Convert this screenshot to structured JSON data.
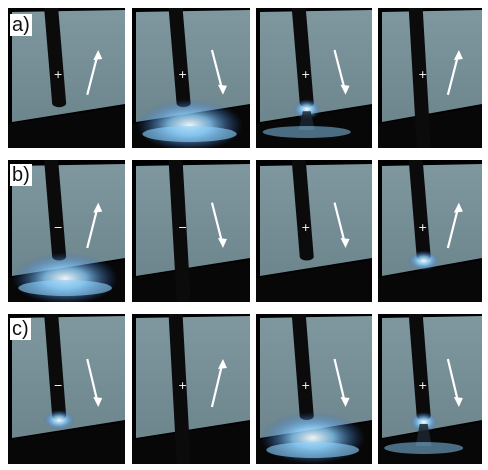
{
  "figure": {
    "rows": [
      {
        "label": "a)",
        "frames": [
          {
            "polarity": "+",
            "arrow": "up",
            "glow": "none"
          },
          {
            "polarity": "+",
            "arrow": "down",
            "glow": "wide"
          },
          {
            "polarity": "+",
            "arrow": "down",
            "glow": "droplet"
          },
          {
            "polarity": "+",
            "arrow": "up",
            "glow": "none"
          }
        ]
      },
      {
        "label": "b)",
        "frames": [
          {
            "polarity": "−",
            "arrow": "up",
            "glow": "wide-tip"
          },
          {
            "polarity": "−",
            "arrow": "down",
            "glow": "none"
          },
          {
            "polarity": "+",
            "arrow": "down",
            "glow": "none"
          },
          {
            "polarity": "+",
            "arrow": "up",
            "glow": "tip"
          }
        ]
      },
      {
        "label": "c)",
        "frames": [
          {
            "polarity": "−",
            "arrow": "down",
            "glow": "tip"
          },
          {
            "polarity": "+",
            "arrow": "up",
            "glow": "none"
          },
          {
            "polarity": "+",
            "arrow": "down",
            "glow": "wide"
          },
          {
            "polarity": "+",
            "arrow": "down",
            "glow": "droplet"
          }
        ]
      }
    ],
    "colors": {
      "plate": "#6d858c",
      "electrode": "#0b0b0b",
      "arc": "#8fd3ff",
      "background": "#000000"
    }
  }
}
